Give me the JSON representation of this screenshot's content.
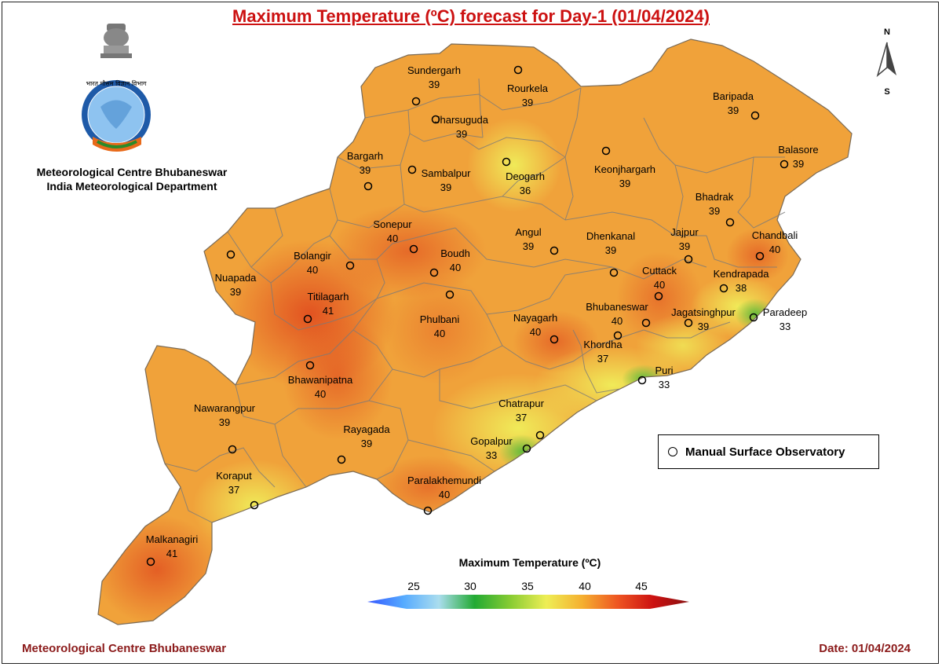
{
  "title": "Maximum Temperature (ºC) forecast for Day-1 (01/04/2024)",
  "org_line1": "Meteorological Centre Bhubaneswar",
  "org_line2": "India Meteorological Department",
  "emblem_text": "भारत मौसम विज्ञान विभाग",
  "footer_left": "Meteorological Centre Bhubaneswar",
  "footer_right": "Date: 01/04/2024",
  "legend_label": "Manual Surface Observatory",
  "compass": {
    "north": "N",
    "south": "S"
  },
  "scale": {
    "title": "Maximum Temperature (ºC)",
    "ticks": [
      "25",
      "30",
      "35",
      "40",
      "45"
    ],
    "colors": [
      "#3355ff",
      "#55aaff",
      "#aaddee",
      "#22aa33",
      "#88cc33",
      "#eeee55",
      "#f5b030",
      "#ee5522",
      "#cc1111",
      "#881111"
    ]
  },
  "stations": [
    {
      "name": "Sundergarh",
      "value": "39"
    },
    {
      "name": "Rourkela",
      "value": "39"
    },
    {
      "name": "Jharsuguda",
      "value": "39"
    },
    {
      "name": "Baripada",
      "value": "39"
    },
    {
      "name": "Balasore",
      "value": "39"
    },
    {
      "name": "Bargarh",
      "value": "39"
    },
    {
      "name": "Sambalpur",
      "value": "39"
    },
    {
      "name": "Deogarh",
      "value": "36"
    },
    {
      "name": "Keonjhargarh",
      "value": "39"
    },
    {
      "name": "Bhadrak",
      "value": "39"
    },
    {
      "name": "Chandbali",
      "value": "40"
    },
    {
      "name": "Sonepur",
      "value": "40"
    },
    {
      "name": "Bolangir",
      "value": "40"
    },
    {
      "name": "Boudh",
      "value": "40"
    },
    {
      "name": "Angul",
      "value": "39"
    },
    {
      "name": "Dhenkanal",
      "value": "39"
    },
    {
      "name": "Jajpur",
      "value": "39"
    },
    {
      "name": "Nuapada",
      "value": "39"
    },
    {
      "name": "Cuttack",
      "value": "40"
    },
    {
      "name": "Kendrapada",
      "value": "38"
    },
    {
      "name": "Titilagarh",
      "value": "41"
    },
    {
      "name": "Bhubaneswar",
      "value": "40"
    },
    {
      "name": "Jagatsinghpur",
      "value": "39"
    },
    {
      "name": "Paradeep",
      "value": "33"
    },
    {
      "name": "Phulbani",
      "value": "40"
    },
    {
      "name": "Nayagarh",
      "value": "40"
    },
    {
      "name": "Khordha",
      "value": "37"
    },
    {
      "name": "Puri",
      "value": "33"
    },
    {
      "name": "Bhawanipatna",
      "value": "40"
    },
    {
      "name": "Nawarangpur",
      "value": "39"
    },
    {
      "name": "Chatrapur",
      "value": "37"
    },
    {
      "name": "Rayagada",
      "value": "39"
    },
    {
      "name": "Gopalpur",
      "value": "33"
    },
    {
      "name": "Koraput",
      "value": "37"
    },
    {
      "name": "Paralakhemundi",
      "value": "40"
    },
    {
      "name": "Malkanagiri",
      "value": "41"
    }
  ]
}
